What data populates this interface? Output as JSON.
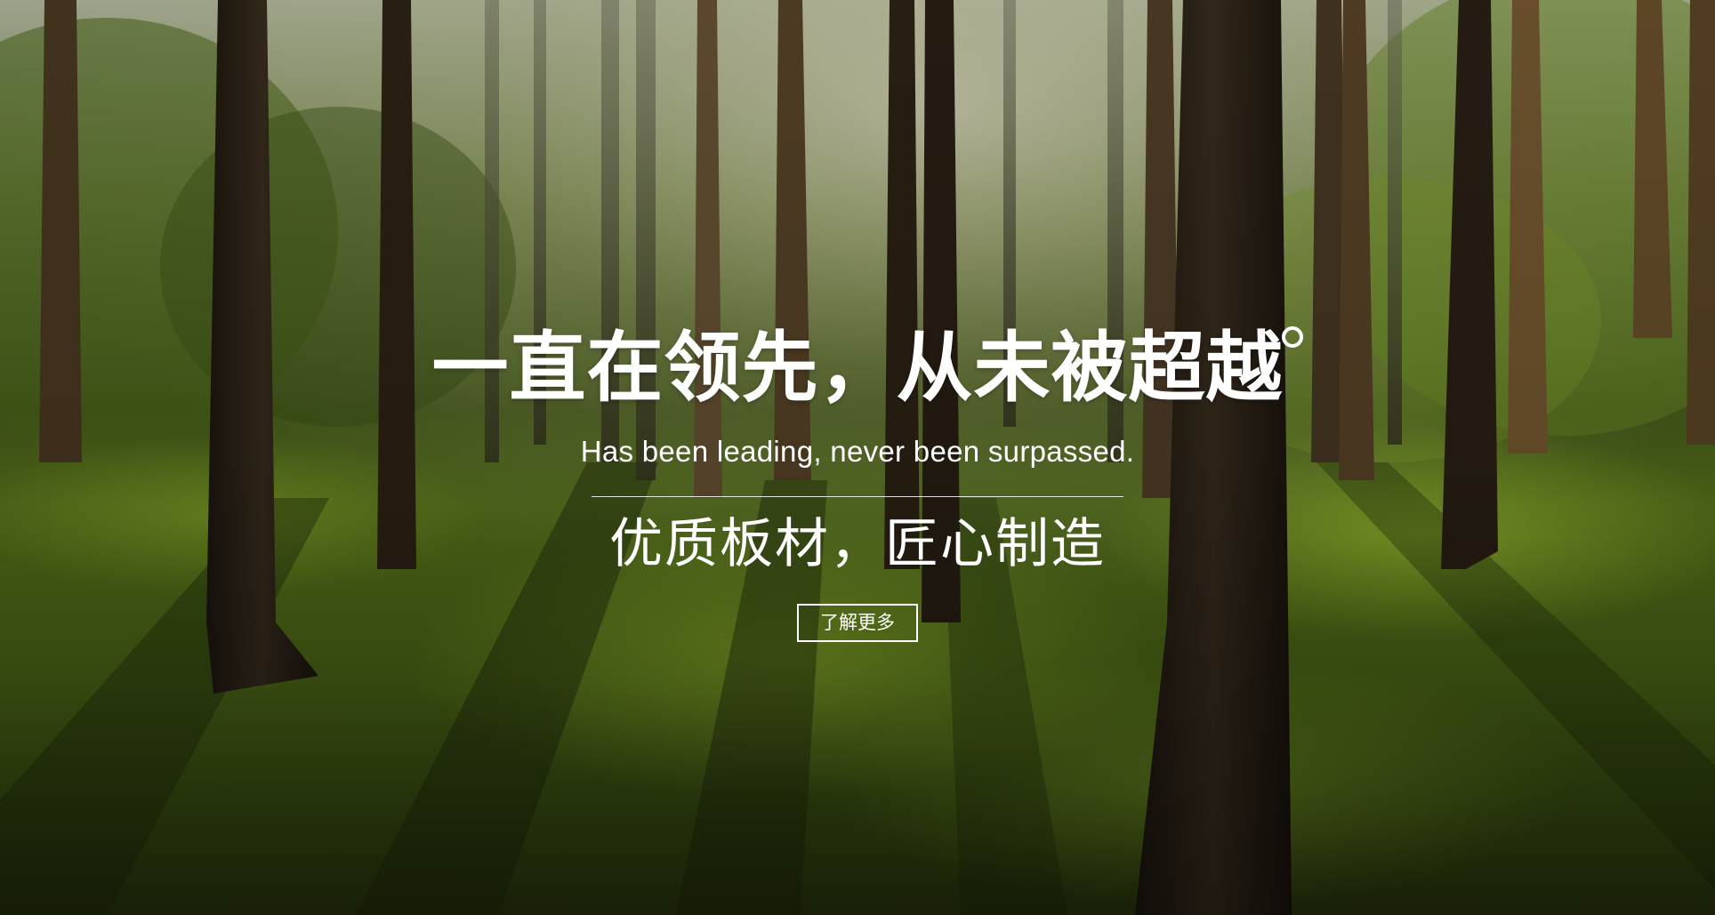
{
  "hero": {
    "title": "一直在领先，从未被超越",
    "subtitle_en": "Has been leading, never been surpassed.",
    "tagline": "优质板材，匠心制造",
    "button_label": "了解更多"
  },
  "background": {
    "scene": "forest-photo",
    "colors": {
      "sky_haze": "#c9cfb8",
      "foliage": "#5f7d1e",
      "moss_light": "#8db52a",
      "moss_dark": "#2f3f12",
      "trunk": "#2a2117"
    }
  }
}
